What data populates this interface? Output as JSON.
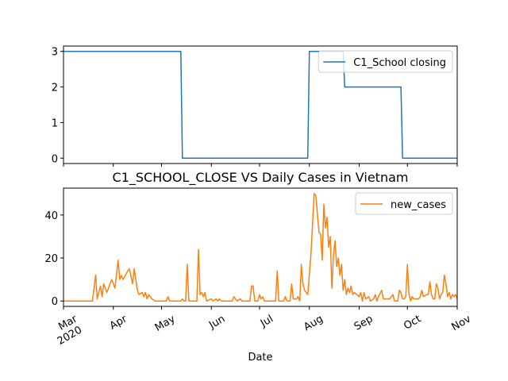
{
  "chart_data": [
    {
      "type": "line",
      "x": [
        "2020-03-01",
        "2020-05-13",
        "2020-05-14",
        "2020-07-31",
        "2020-08-01",
        "2020-08-22",
        "2020-08-23",
        "2020-09-27",
        "2020-09-28",
        "2020-11-01"
      ],
      "series": [
        {
          "name": "C1_School closing",
          "color": "#1f77b4",
          "values": [
            3,
            3,
            0,
            0,
            3,
            3,
            2,
            2,
            0,
            0
          ]
        }
      ],
      "xlim": [
        "2020-03-01",
        "2020-11-01"
      ],
      "xticks": [
        "2020-03-01",
        "2020-04-01",
        "2020-05-01",
        "2020-06-01",
        "2020-07-01",
        "2020-08-01",
        "2020-09-01",
        "2020-10-01",
        "2020-11-01"
      ],
      "ylim": [
        -0.15,
        3.15
      ],
      "yticks": [
        0,
        1,
        2,
        3
      ],
      "legend": "upper right"
    },
    {
      "type": "line",
      "title": "C1_SCHOOL_CLOSE VS Daily Cases in Vietnam",
      "xlabel": "Date",
      "year_label": "2020",
      "x": [
        "2020-03-01",
        "2020-03-19",
        "2020-03-21",
        "2020-03-22",
        "2020-03-24",
        "2020-03-25",
        "2020-03-26",
        "2020-03-28",
        "2020-03-31",
        "2020-04-02",
        "2020-04-04",
        "2020-04-05",
        "2020-04-06",
        "2020-04-07",
        "2020-04-10",
        "2020-04-11",
        "2020-04-13",
        "2020-04-14",
        "2020-04-16",
        "2020-04-17",
        "2020-04-19",
        "2020-04-20",
        "2020-04-21",
        "2020-04-22",
        "2020-04-23",
        "2020-04-25",
        "2020-04-27",
        "2020-05-04",
        "2020-05-05",
        "2020-05-06",
        "2020-05-13",
        "2020-05-14",
        "2020-05-15",
        "2020-05-16",
        "2020-05-17",
        "2020-05-18",
        "2020-05-23",
        "2020-05-24",
        "2020-05-25",
        "2020-05-26",
        "2020-05-27",
        "2020-05-28",
        "2020-05-29",
        "2020-06-01",
        "2020-06-02",
        "2020-06-04",
        "2020-06-05",
        "2020-06-06",
        "2020-06-07",
        "2020-06-14",
        "2020-06-15",
        "2020-06-16",
        "2020-06-17",
        "2020-06-19",
        "2020-06-20",
        "2020-06-25",
        "2020-06-26",
        "2020-06-27",
        "2020-06-28",
        "2020-06-30",
        "2020-07-01",
        "2020-07-02",
        "2020-07-03",
        "2020-07-04",
        "2020-07-11",
        "2020-07-12",
        "2020-07-13",
        "2020-07-16",
        "2020-07-17",
        "2020-07-18",
        "2020-07-20",
        "2020-07-21",
        "2020-07-22",
        "2020-07-24",
        "2020-07-25",
        "2020-07-26",
        "2020-07-27",
        "2020-07-28",
        "2020-07-29",
        "2020-07-31",
        "2020-08-02",
        "2020-08-04",
        "2020-08-05",
        "2020-08-07",
        "2020-08-08",
        "2020-08-09",
        "2020-08-10",
        "2020-08-11",
        "2020-08-12",
        "2020-08-13",
        "2020-08-14",
        "2020-08-15",
        "2020-08-16",
        "2020-08-17",
        "2020-08-18",
        "2020-08-19",
        "2020-08-20",
        "2020-08-21",
        "2020-08-22",
        "2020-08-23",
        "2020-08-24",
        "2020-08-25",
        "2020-08-26",
        "2020-08-27",
        "2020-08-28",
        "2020-08-29",
        "2020-09-01",
        "2020-09-02",
        "2020-09-03",
        "2020-09-04",
        "2020-09-05",
        "2020-09-07",
        "2020-09-08",
        "2020-09-10",
        "2020-09-11",
        "2020-09-12",
        "2020-09-13",
        "2020-09-15",
        "2020-09-16",
        "2020-09-19",
        "2020-09-20",
        "2020-09-22",
        "2020-09-23",
        "2020-09-25",
        "2020-09-26",
        "2020-09-27",
        "2020-09-28",
        "2020-09-29",
        "2020-09-30",
        "2020-10-01",
        "2020-10-02",
        "2020-10-03",
        "2020-10-04",
        "2020-10-05",
        "2020-10-08",
        "2020-10-09",
        "2020-10-10",
        "2020-10-11",
        "2020-10-13",
        "2020-10-14",
        "2020-10-15",
        "2020-10-16",
        "2020-10-17",
        "2020-10-18",
        "2020-10-19",
        "2020-10-20",
        "2020-10-21",
        "2020-10-22",
        "2020-10-23",
        "2020-10-24",
        "2020-10-25",
        "2020-10-26",
        "2020-10-27",
        "2020-10-28",
        "2020-10-29",
        "2020-10-30",
        "2020-10-31",
        "2020-11-01"
      ],
      "series": [
        {
          "name": "new_cases",
          "color": "#ff7f0e",
          "values": [
            0,
            0,
            12,
            1,
            7,
            2,
            8,
            4,
            10,
            6,
            19,
            10,
            12,
            10,
            14,
            15,
            8,
            15,
            5,
            3,
            4,
            2,
            4,
            1,
            3,
            1,
            0,
            0,
            2,
            0,
            0,
            1,
            0,
            0,
            17,
            0,
            0,
            24,
            3,
            4,
            2,
            4,
            0,
            1,
            0,
            1,
            0,
            1,
            0,
            0,
            2,
            1,
            0,
            1,
            0,
            0,
            7,
            7,
            0,
            0,
            3,
            1,
            2,
            0,
            0,
            14,
            0,
            0,
            2,
            0,
            0,
            8,
            1,
            1,
            2,
            0,
            17,
            8,
            5,
            3,
            22,
            50,
            49,
            32,
            31,
            19,
            45,
            34,
            39,
            25,
            30,
            6,
            21,
            28,
            16,
            20,
            12,
            17,
            5,
            10,
            3,
            6,
            4,
            7,
            3,
            4,
            2,
            4,
            0,
            4,
            1,
            2,
            0,
            1,
            3,
            0,
            2,
            5,
            1,
            1,
            1,
            3,
            0,
            0,
            5,
            4,
            1,
            1,
            2,
            17,
            3,
            0,
            2,
            1,
            1,
            2,
            5,
            2,
            3,
            3,
            9,
            3,
            1,
            1,
            8,
            6,
            1,
            3,
            4,
            12,
            8,
            2,
            4,
            1,
            3,
            2,
            3,
            1
          ]
        }
      ],
      "xlim": [
        "2020-03-01",
        "2020-11-01"
      ],
      "xticks": [
        {
          "value": "2020-03-01",
          "label": "Mar"
        },
        {
          "value": "2020-04-01",
          "label": "Apr"
        },
        {
          "value": "2020-05-01",
          "label": "May"
        },
        {
          "value": "2020-06-01",
          "label": "Jun"
        },
        {
          "value": "2020-07-01",
          "label": "Jul"
        },
        {
          "value": "2020-08-01",
          "label": "Aug"
        },
        {
          "value": "2020-09-01",
          "label": "Sep"
        },
        {
          "value": "2020-10-01",
          "label": "Oct"
        },
        {
          "value": "2020-11-01",
          "label": "Nov"
        }
      ],
      "ylim": [
        -2.5,
        52.5
      ],
      "yticks": [
        0,
        20,
        40
      ],
      "legend": "upper right"
    }
  ]
}
